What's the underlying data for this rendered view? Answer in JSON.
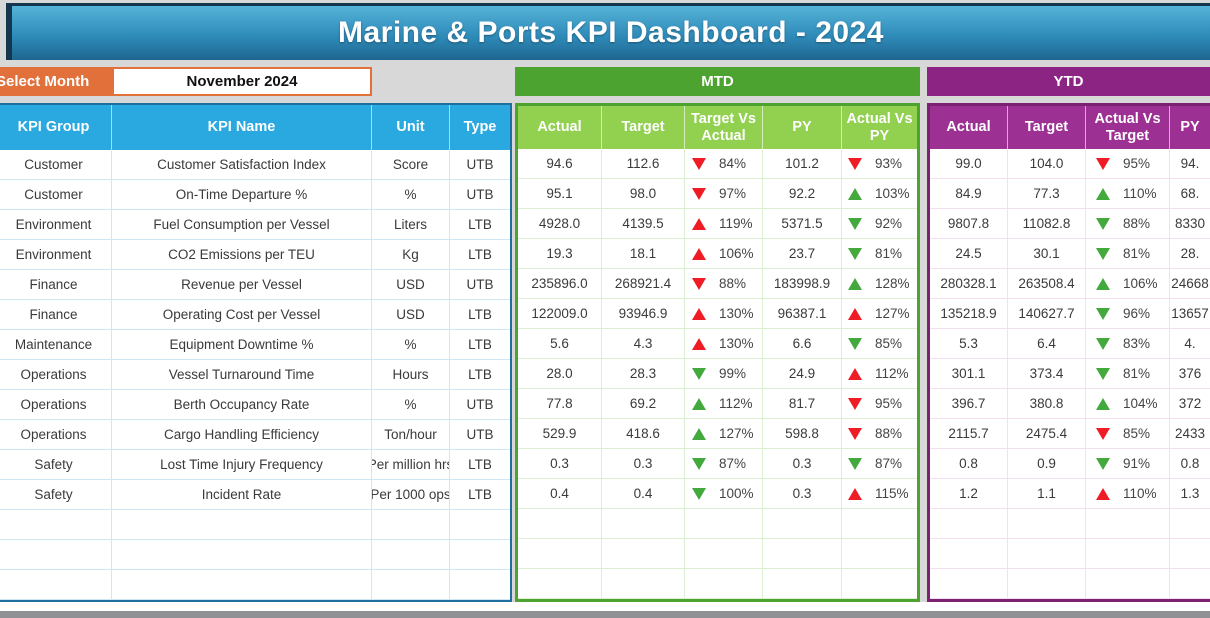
{
  "title": "Marine & Ports KPI Dashboard - 2024",
  "month_selector": {
    "label": "Select Month",
    "value": "November 2024"
  },
  "sections": {
    "mtd_label": "MTD",
    "ytd_label": "YTD"
  },
  "table": {
    "info_headers": [
      "KPI Group",
      "KPI Name",
      "Unit",
      "Type"
    ],
    "mtd_headers": [
      "Actual",
      "Target",
      "Target Vs\nActual",
      "PY",
      "Actual Vs\nPY"
    ],
    "ytd_headers": [
      "Actual",
      "Target",
      "Actual Vs\nTarget",
      "PY"
    ],
    "empty_row_count": 3,
    "rows": [
      {
        "group": "Customer",
        "name": "Customer Satisfaction Index",
        "unit": "Score",
        "type": "UTB",
        "mtd": {
          "actual": "94.6",
          "target": "112.6",
          "tva": {
            "dir": "down",
            "color": "red",
            "pct": "84%"
          },
          "py": "101.2",
          "avp": {
            "dir": "down",
            "color": "red",
            "pct": "93%"
          }
        },
        "ytd": {
          "actual": "99.0",
          "target": "104.0",
          "avt": {
            "dir": "down",
            "color": "red",
            "pct": "95%"
          },
          "py": "94."
        }
      },
      {
        "group": "Customer",
        "name": "On-Time Departure %",
        "unit": "%",
        "type": "UTB",
        "mtd": {
          "actual": "95.1",
          "target": "98.0",
          "tva": {
            "dir": "down",
            "color": "red",
            "pct": "97%"
          },
          "py": "92.2",
          "avp": {
            "dir": "up",
            "color": "green",
            "pct": "103%"
          }
        },
        "ytd": {
          "actual": "84.9",
          "target": "77.3",
          "avt": {
            "dir": "up",
            "color": "green",
            "pct": "110%"
          },
          "py": "68."
        }
      },
      {
        "group": "Environment",
        "name": "Fuel Consumption per Vessel",
        "unit": "Liters",
        "type": "LTB",
        "mtd": {
          "actual": "4928.0",
          "target": "4139.5",
          "tva": {
            "dir": "up",
            "color": "red",
            "pct": "119%"
          },
          "py": "5371.5",
          "avp": {
            "dir": "down",
            "color": "green",
            "pct": "92%"
          }
        },
        "ytd": {
          "actual": "9807.8",
          "target": "11082.8",
          "avt": {
            "dir": "down",
            "color": "green",
            "pct": "88%"
          },
          "py": "8330"
        }
      },
      {
        "group": "Environment",
        "name": "CO2 Emissions per TEU",
        "unit": "Kg",
        "type": "LTB",
        "mtd": {
          "actual": "19.3",
          "target": "18.1",
          "tva": {
            "dir": "up",
            "color": "red",
            "pct": "106%"
          },
          "py": "23.7",
          "avp": {
            "dir": "down",
            "color": "green",
            "pct": "81%"
          }
        },
        "ytd": {
          "actual": "24.5",
          "target": "30.1",
          "avt": {
            "dir": "down",
            "color": "green",
            "pct": "81%"
          },
          "py": "28."
        }
      },
      {
        "group": "Finance",
        "name": "Revenue per Vessel",
        "unit": "USD",
        "type": "UTB",
        "mtd": {
          "actual": "235896.0",
          "target": "268921.4",
          "tva": {
            "dir": "down",
            "color": "red",
            "pct": "88%"
          },
          "py": "183998.9",
          "avp": {
            "dir": "up",
            "color": "green",
            "pct": "128%"
          }
        },
        "ytd": {
          "actual": "280328.1",
          "target": "263508.4",
          "avt": {
            "dir": "up",
            "color": "green",
            "pct": "106%"
          },
          "py": "24668"
        }
      },
      {
        "group": "Finance",
        "name": "Operating Cost per Vessel",
        "unit": "USD",
        "type": "LTB",
        "mtd": {
          "actual": "122009.0",
          "target": "93946.9",
          "tva": {
            "dir": "up",
            "color": "red",
            "pct": "130%"
          },
          "py": "96387.1",
          "avp": {
            "dir": "up",
            "color": "red",
            "pct": "127%"
          }
        },
        "ytd": {
          "actual": "135218.9",
          "target": "140627.7",
          "avt": {
            "dir": "down",
            "color": "green",
            "pct": "96%"
          },
          "py": "13657"
        }
      },
      {
        "group": "Maintenance",
        "name": "Equipment Downtime %",
        "unit": "%",
        "type": "LTB",
        "mtd": {
          "actual": "5.6",
          "target": "4.3",
          "tva": {
            "dir": "up",
            "color": "red",
            "pct": "130%"
          },
          "py": "6.6",
          "avp": {
            "dir": "down",
            "color": "green",
            "pct": "85%"
          }
        },
        "ytd": {
          "actual": "5.3",
          "target": "6.4",
          "avt": {
            "dir": "down",
            "color": "green",
            "pct": "83%"
          },
          "py": "4."
        }
      },
      {
        "group": "Operations",
        "name": "Vessel Turnaround Time",
        "unit": "Hours",
        "type": "LTB",
        "mtd": {
          "actual": "28.0",
          "target": "28.3",
          "tva": {
            "dir": "down",
            "color": "green",
            "pct": "99%"
          },
          "py": "24.9",
          "avp": {
            "dir": "up",
            "color": "red",
            "pct": "112%"
          }
        },
        "ytd": {
          "actual": "301.1",
          "target": "373.4",
          "avt": {
            "dir": "down",
            "color": "green",
            "pct": "81%"
          },
          "py": "376"
        }
      },
      {
        "group": "Operations",
        "name": "Berth Occupancy Rate",
        "unit": "%",
        "type": "UTB",
        "mtd": {
          "actual": "77.8",
          "target": "69.2",
          "tva": {
            "dir": "up",
            "color": "green",
            "pct": "112%"
          },
          "py": "81.7",
          "avp": {
            "dir": "down",
            "color": "red",
            "pct": "95%"
          }
        },
        "ytd": {
          "actual": "396.7",
          "target": "380.8",
          "avt": {
            "dir": "up",
            "color": "green",
            "pct": "104%"
          },
          "py": "372"
        }
      },
      {
        "group": "Operations",
        "name": "Cargo Handling Efficiency",
        "unit": "Ton/hour",
        "type": "UTB",
        "mtd": {
          "actual": "529.9",
          "target": "418.6",
          "tva": {
            "dir": "up",
            "color": "green",
            "pct": "127%"
          },
          "py": "598.8",
          "avp": {
            "dir": "down",
            "color": "red",
            "pct": "88%"
          }
        },
        "ytd": {
          "actual": "2115.7",
          "target": "2475.4",
          "avt": {
            "dir": "down",
            "color": "red",
            "pct": "85%"
          },
          "py": "2433"
        }
      },
      {
        "group": "Safety",
        "name": "Lost Time Injury Frequency",
        "unit": "Per million hrs",
        "type": "LTB",
        "mtd": {
          "actual": "0.3",
          "target": "0.3",
          "tva": {
            "dir": "down",
            "color": "green",
            "pct": "87%"
          },
          "py": "0.3",
          "avp": {
            "dir": "down",
            "color": "green",
            "pct": "87%"
          }
        },
        "ytd": {
          "actual": "0.8",
          "target": "0.9",
          "avt": {
            "dir": "down",
            "color": "green",
            "pct": "91%"
          },
          "py": "0.8"
        }
      },
      {
        "group": "Safety",
        "name": "Incident Rate",
        "unit": "Per 1000 ops",
        "type": "LTB",
        "mtd": {
          "actual": "0.4",
          "target": "0.4",
          "tva": {
            "dir": "down",
            "color": "green",
            "pct": "100%"
          },
          "py": "0.3",
          "avp": {
            "dir": "up",
            "color": "red",
            "pct": "115%"
          }
        },
        "ytd": {
          "actual": "1.2",
          "target": "1.1",
          "avt": {
            "dir": "up",
            "color": "red",
            "pct": "110%"
          },
          "py": "1.3"
        }
      }
    ]
  },
  "colors": {
    "page_bg": "#d8d8d8",
    "cyan": "#29a9e0",
    "table_border": "#1e6f9e",
    "green_dark": "#4da32f",
    "green_light": "#92d050",
    "purple_dark": "#8b2483",
    "purple_light": "#9c3193",
    "purple_border": "#7b2173",
    "orange": "#e2703a",
    "arrow_red": "#ee1c25",
    "arrow_green": "#44a93d",
    "gray_bar": "#8f9194"
  }
}
